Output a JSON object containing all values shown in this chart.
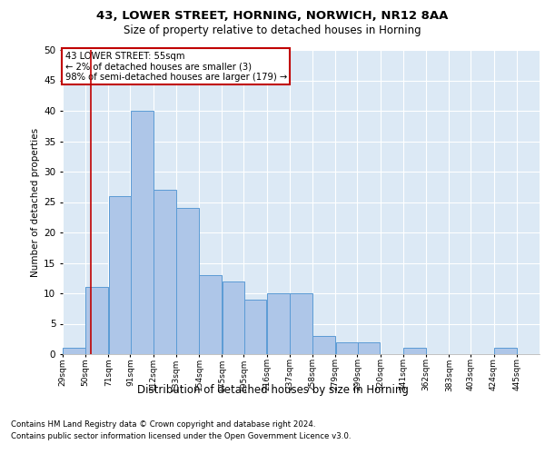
{
  "title1": "43, LOWER STREET, HORNING, NORWICH, NR12 8AA",
  "title2": "Size of property relative to detached houses in Horning",
  "xlabel": "Distribution of detached houses by size in Horning",
  "ylabel": "Number of detached properties",
  "footnote1": "Contains HM Land Registry data © Crown copyright and database right 2024.",
  "footnote2": "Contains public sector information licensed under the Open Government Licence v3.0.",
  "annotation_title": "43 LOWER STREET: 55sqm",
  "annotation_line1": "← 2% of detached houses are smaller (3)",
  "annotation_line2": "98% of semi-detached houses are larger (179) →",
  "bar_left_edges": [
    29,
    50,
    71,
    91,
    112,
    133,
    154,
    175,
    195,
    216,
    237,
    258,
    279,
    299,
    320,
    341,
    362,
    383,
    403,
    424
  ],
  "bar_heights": [
    1,
    11,
    26,
    40,
    27,
    24,
    13,
    12,
    9,
    10,
    10,
    3,
    2,
    2,
    0,
    1,
    0,
    0,
    0,
    1
  ],
  "bar_widths": [
    21,
    21,
    21,
    21,
    21,
    21,
    21,
    21,
    21,
    21,
    21,
    21,
    21,
    21,
    21,
    21,
    21,
    21,
    21,
    21
  ],
  "tick_labels": [
    "29sqm",
    "50sqm",
    "71sqm",
    "91sqm",
    "112sqm",
    "133sqm",
    "154sqm",
    "175sqm",
    "195sqm",
    "216sqm",
    "237sqm",
    "258sqm",
    "279sqm",
    "299sqm",
    "320sqm",
    "341sqm",
    "362sqm",
    "383sqm",
    "403sqm",
    "424sqm",
    "445sqm"
  ],
  "tick_positions": [
    29,
    50,
    71,
    91,
    112,
    133,
    154,
    175,
    195,
    216,
    237,
    258,
    279,
    299,
    320,
    341,
    362,
    383,
    403,
    424,
    445
  ],
  "bar_color": "#aec6e8",
  "bar_edge_color": "#5b9bd5",
  "vline_x": 55,
  "vline_color": "#c00000",
  "annotation_box_color": "#c00000",
  "background_color": "#dce9f5",
  "ylim": [
    0,
    50
  ],
  "xlim": [
    29,
    466
  ],
  "yticks": [
    0,
    5,
    10,
    15,
    20,
    25,
    30,
    35,
    40,
    45,
    50
  ]
}
